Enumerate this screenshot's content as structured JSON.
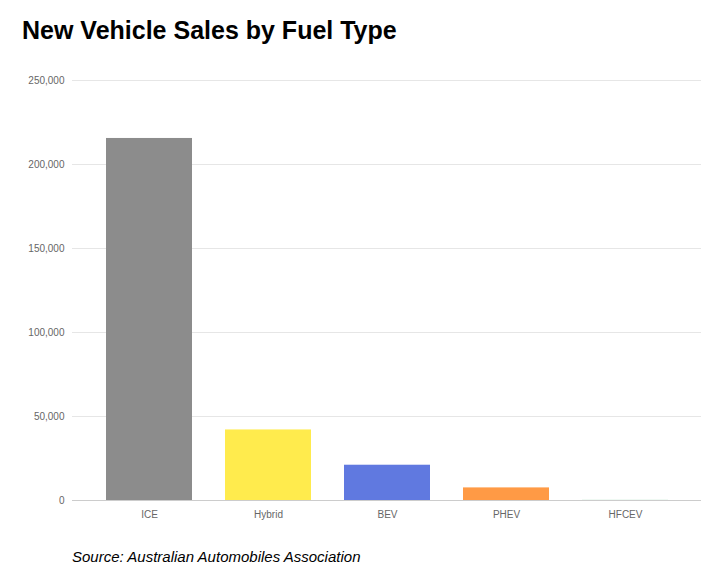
{
  "chart_data": {
    "type": "bar",
    "title": "New Vehicle Sales by Fuel Type",
    "caption": "Source: Australian Automobiles Association",
    "categories": [
      "ICE",
      "Hybrid",
      "BEV",
      "PHEV",
      "HFCEV"
    ],
    "values": [
      215500,
      42000,
      21000,
      7500,
      50
    ],
    "colors": [
      "#8c8c8c",
      "#ffeb4d",
      "#6079e0",
      "#ff9a45",
      "#3cb371"
    ],
    "ylim": [
      0,
      250000
    ],
    "yticks": [
      0,
      {
        "value": 50000,
        "label": "50,000"
      },
      {
        "value": 100000,
        "label": "100,000"
      },
      {
        "value": 150000,
        "label": "150,000"
      },
      {
        "value": 200000,
        "label": "200,000"
      },
      {
        "value": 250000,
        "label": "250,000"
      }
    ],
    "grid": true
  }
}
